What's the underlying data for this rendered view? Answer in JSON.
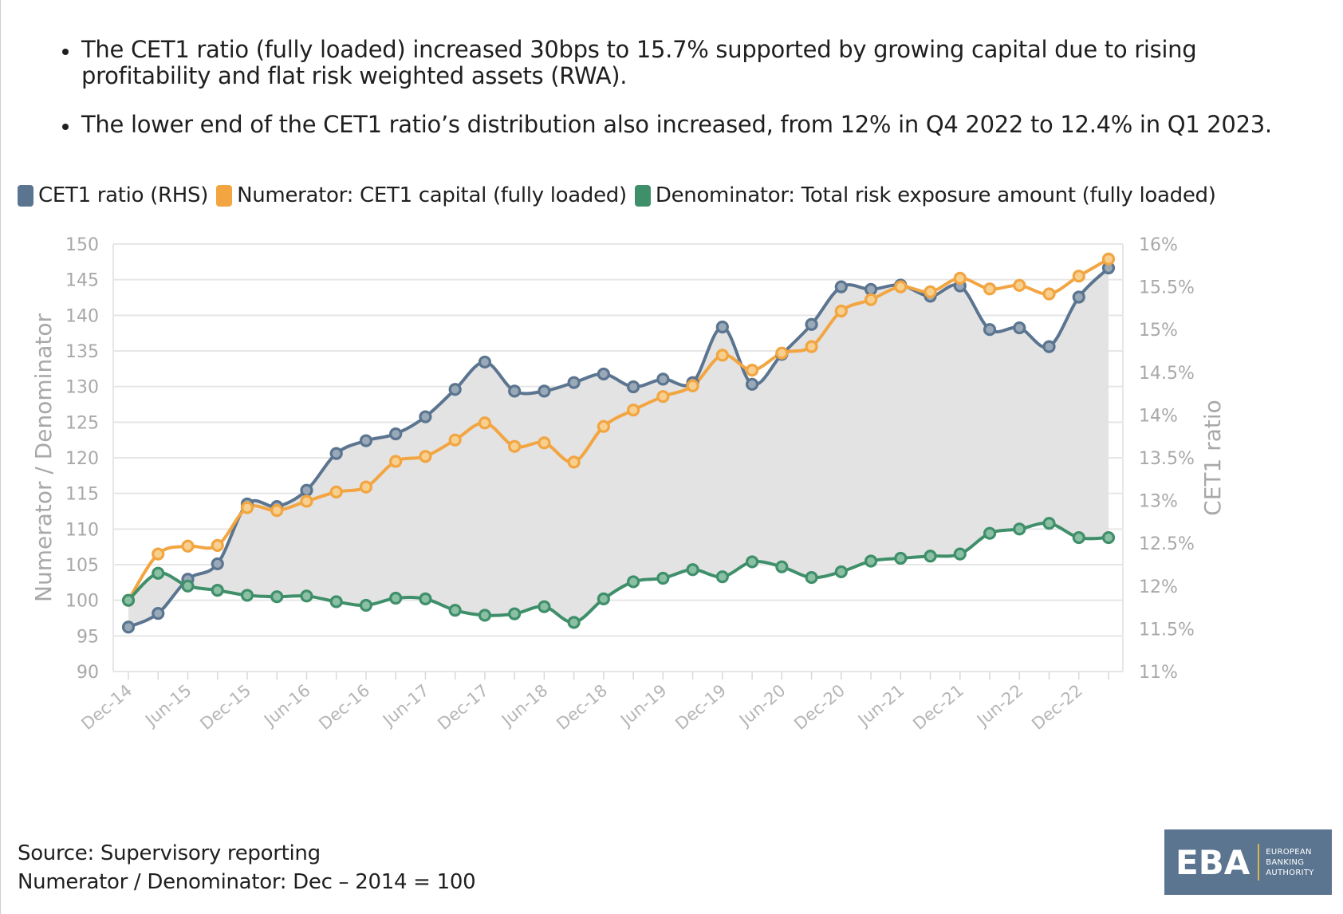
{
  "bullets": [
    "The CET1 ratio (fully loaded) increased 30bps to 15.7% supported by growing capital due to rising profitability and flat risk weighted assets (RWA).",
    "The lower end of the CET1 ratio’s distribution also increased, from 12% in Q4 2022 to 12.4% in Q1 2023."
  ],
  "footer": {
    "source": "Source: Supervisory reporting",
    "note": "Numerator / Denominator: Dec – 2014 = 100"
  },
  "logo": {
    "text": "EBA",
    "line1": "EUROPEAN",
    "line2": "BANKING",
    "line3": "AUTHORITY"
  },
  "chart_data": {
    "type": "line",
    "title": "",
    "xlabel": "",
    "ylabel": "Numerator / Denominator",
    "y2label": "CET1 ratio",
    "ylim": [
      90,
      150
    ],
    "y2lim": [
      11,
      16
    ],
    "yticks": [
      "150",
      "145",
      "140",
      "135",
      "130",
      "125",
      "120",
      "115",
      "110",
      "105",
      "100",
      "95",
      "90"
    ],
    "y2ticks": [
      "16%",
      "15.5%",
      "15%",
      "14.5%",
      "14%",
      "13.5%",
      "13%",
      "12.5%",
      "12%",
      "11.5%",
      "11%"
    ],
    "xtick_labels": [
      "Dec-14",
      "Jun-15",
      "Dec-15",
      "Jun-16",
      "Dec-16",
      "Jun-17",
      "Dec-17",
      "Jun-18",
      "Dec-18",
      "Jun-19",
      "Dec-19",
      "Jun-20",
      "Dec-20",
      "Jun-21",
      "Dec-21",
      "Jun-22",
      "Dec-22"
    ],
    "x": [
      "Dec-14",
      "Mar-15",
      "Jun-15",
      "Sep-15",
      "Dec-15",
      "Mar-16",
      "Jun-16",
      "Sep-16",
      "Dec-16",
      "Mar-17",
      "Jun-17",
      "Sep-17",
      "Dec-17",
      "Mar-18",
      "Jun-18",
      "Sep-18",
      "Dec-18",
      "Mar-19",
      "Jun-19",
      "Sep-19",
      "Dec-19",
      "Mar-20",
      "Jun-20",
      "Sep-20",
      "Dec-20",
      "Mar-21",
      "Jun-21",
      "Sep-21",
      "Dec-21",
      "Mar-22",
      "Jun-22",
      "Sep-22",
      "Dec-22",
      "Mar-23"
    ],
    "grid": true,
    "legend_position": "top-left",
    "series": [
      {
        "name": "CET1 ratio (RHS)",
        "axis": "right",
        "color": "#5b7590",
        "fill": true,
        "values": [
          11.52,
          11.68,
          12.08,
          12.26,
          12.96,
          12.93,
          13.12,
          13.55,
          13.7,
          13.78,
          13.98,
          14.3,
          14.62,
          14.28,
          14.28,
          14.38,
          14.48,
          14.33,
          14.42,
          14.38,
          15.03,
          14.36,
          14.71,
          15.06,
          15.5,
          15.47,
          15.52,
          15.39,
          15.51,
          15.0,
          15.02,
          14.8,
          15.38,
          15.72
        ]
      },
      {
        "name": "Numerator: CET1 capital (fully loaded)",
        "axis": "left",
        "color": "#f2a541",
        "values": [
          100.0,
          106.5,
          107.6,
          107.7,
          113.0,
          112.6,
          113.9,
          115.2,
          115.9,
          119.5,
          120.2,
          122.5,
          124.9,
          121.6,
          122.1,
          119.4,
          124.4,
          126.7,
          128.6,
          130.1,
          134.4,
          132.3,
          134.7,
          135.6,
          140.6,
          142.2,
          144.0,
          143.3,
          145.2,
          143.7,
          144.2,
          143.0,
          145.5,
          147.9
        ]
      },
      {
        "name": "Denominator: Total risk exposure amount (fully loaded)",
        "axis": "left",
        "color": "#3f8f6a",
        "values": [
          100.0,
          103.8,
          102.0,
          101.4,
          100.7,
          100.5,
          100.6,
          99.8,
          99.3,
          100.3,
          100.2,
          98.6,
          97.9,
          98.1,
          99.1,
          96.9,
          100.2,
          102.6,
          103.1,
          104.3,
          103.3,
          105.4,
          104.7,
          103.2,
          104.0,
          105.5,
          105.9,
          106.2,
          106.5,
          109.4,
          110.0,
          110.8,
          108.8,
          108.8
        ]
      }
    ]
  }
}
